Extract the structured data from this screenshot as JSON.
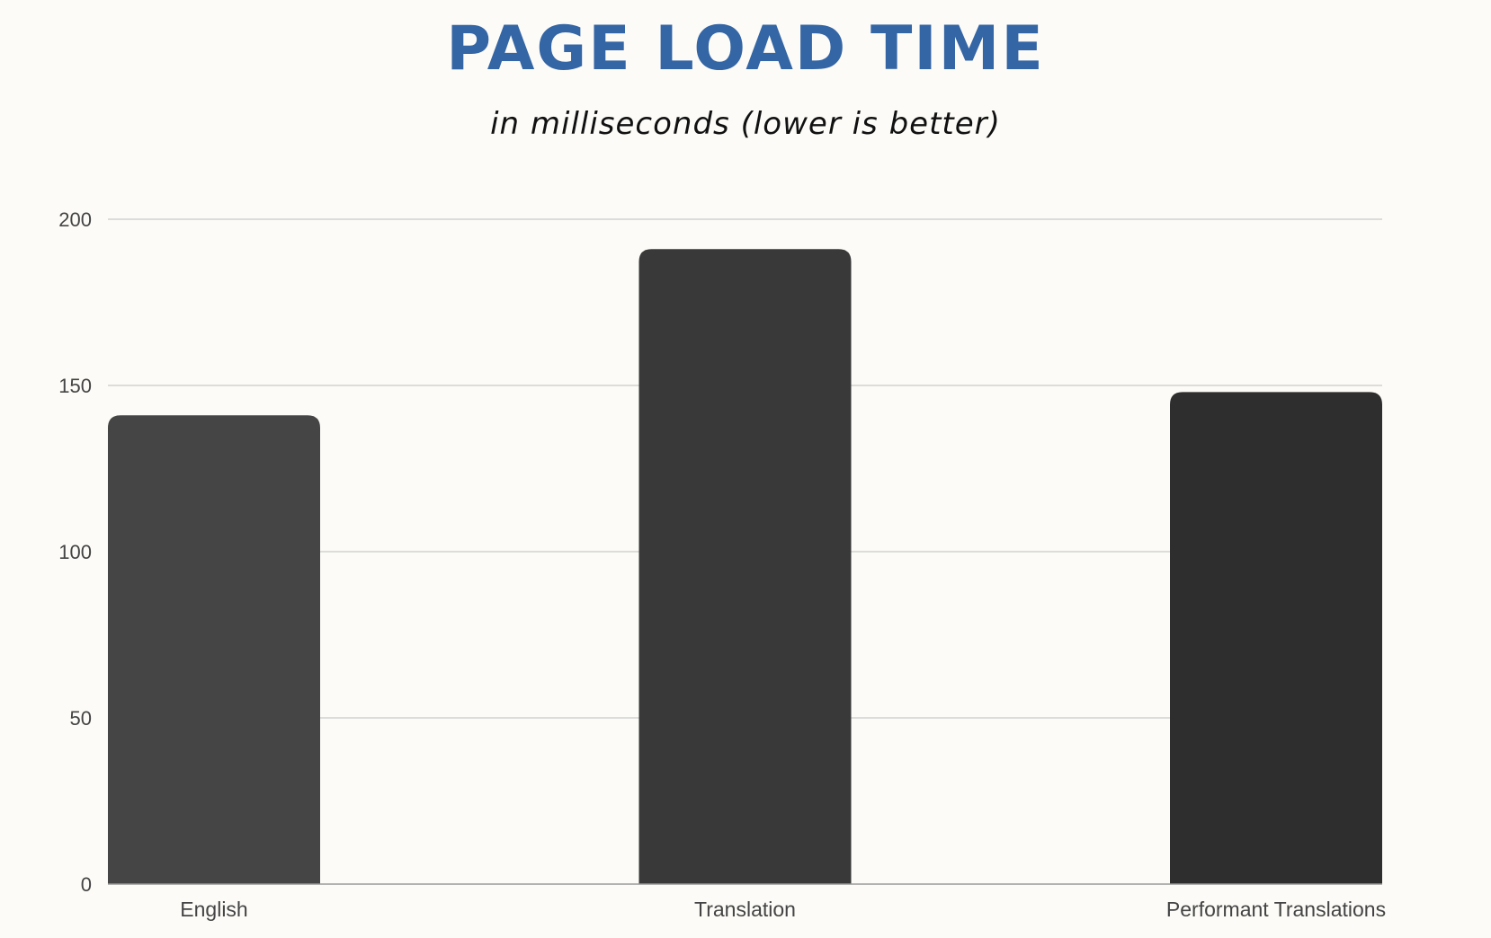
{
  "chart_data": {
    "type": "bar",
    "title": "PAGE LOAD TIME",
    "subtitle": "in milliseconds (lower is better)",
    "categories": [
      "English",
      "Translation",
      "Performant Translations"
    ],
    "values": [
      141,
      191,
      148
    ],
    "bar_colors": [
      "#454545",
      "#393939",
      "#2e2e2e"
    ],
    "ylim": [
      0,
      200
    ],
    "yticks": [
      0,
      50,
      100,
      150,
      200
    ],
    "xlabel": "",
    "ylabel": "",
    "grid": true,
    "legend": "none"
  }
}
